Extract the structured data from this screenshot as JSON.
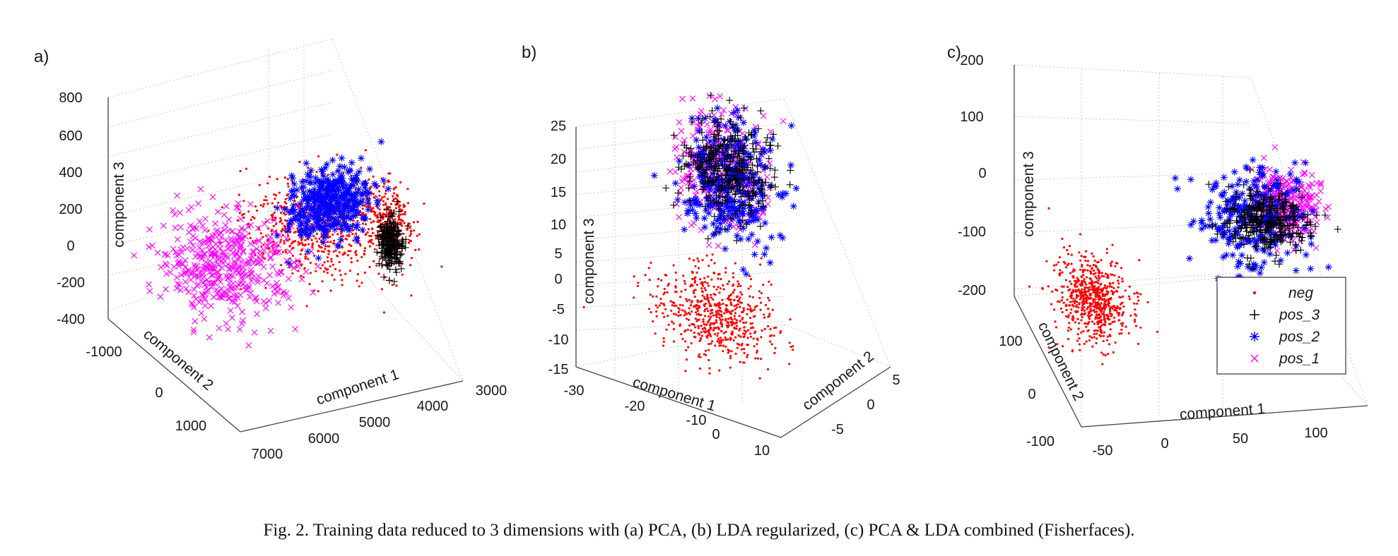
{
  "caption": "Fig. 2. Training data reduced to 3 dimensions with (a) PCA, (b) LDA regularized, (c) PCA & LDA combined (Fisherfaces).",
  "series_styles": {
    "neg": {
      "color": "#ff0000",
      "marker": "dot"
    },
    "pos_3": {
      "color": "#000000",
      "marker": "plus"
    },
    "pos_2": {
      "color": "#0000ff",
      "marker": "asterisk"
    },
    "pos_1": {
      "color": "#ff00ff",
      "marker": "x"
    }
  },
  "chart_data": [
    {
      "panel": "a)",
      "type": "scatter",
      "projection": "3d",
      "xlabel": "component 1",
      "ylabel": "component 2",
      "zlabel": "component 3",
      "xticks": [
        "3000",
        "4000",
        "5000",
        "6000",
        "7000"
      ],
      "yticks": [
        "-1000",
        "0",
        "1000"
      ],
      "zticks": [
        "800",
        "600",
        "400",
        "200",
        "0",
        "-200",
        "-400"
      ],
      "xlim": [
        3000,
        7000
      ],
      "ylim": [
        -1500,
        1500
      ],
      "zlim": [
        -400,
        800
      ],
      "grid": true,
      "series": [
        {
          "name": "neg",
          "clusters": [
            {
              "x": 4300,
              "y": 0,
              "z": 220,
              "sx": 650,
              "sy": 400,
              "sz": 110,
              "n": 700
            },
            {
              "x": 3300,
              "y": -200,
              "z": 220,
              "sx": 160,
              "sy": 200,
              "sz": 70,
              "n": 200
            }
          ]
        },
        {
          "name": "pos_3",
          "clusters": [
            {
              "x": 3350,
              "y": -300,
              "z": 120,
              "sx": 90,
              "sy": 80,
              "sz": 70,
              "n": 220
            }
          ]
        },
        {
          "name": "pos_2",
          "clusters": [
            {
              "x": 4600,
              "y": -500,
              "z": 470,
              "sx": 350,
              "sy": 120,
              "sz": 100,
              "n": 380
            }
          ]
        },
        {
          "name": "pos_1",
          "clusters": [
            {
              "x": 5600,
              "y": 600,
              "z": -20,
              "sx": 520,
              "sy": 380,
              "sz": 120,
              "n": 440
            }
          ]
        }
      ]
    },
    {
      "panel": "b)",
      "type": "scatter",
      "projection": "3d",
      "xlabel": "component 1",
      "ylabel": "component 2",
      "zlabel": "component 3",
      "xticks": [
        "-30",
        "-20",
        "-10",
        "0",
        "10"
      ],
      "yticks": [
        "-5",
        "0",
        "5"
      ],
      "zticks": [
        "25",
        "20",
        "15",
        "10",
        "5",
        "0",
        "-5",
        "-10",
        "-15"
      ],
      "xlim": [
        -30,
        10
      ],
      "ylim": [
        -7,
        7
      ],
      "zlim": [
        -15,
        25
      ],
      "grid": true,
      "series": [
        {
          "name": "neg",
          "clusters": [
            {
              "x": 2,
              "y": -1,
              "z": -2,
              "sx": 3.5,
              "sy": 1.8,
              "sz": 3.5,
              "n": 600
            }
          ]
        },
        {
          "name": "pos_3",
          "clusters": [
            {
              "x": -16,
              "y": 1.5,
              "z": 15,
              "sx": 3,
              "sy": 1.4,
              "sz": 4,
              "n": 320
            }
          ]
        },
        {
          "name": "pos_2",
          "clusters": [
            {
              "x": -15,
              "y": 1.2,
              "z": 13,
              "sx": 3.5,
              "sy": 1.5,
              "sz": 5,
              "n": 320
            }
          ]
        },
        {
          "name": "pos_1",
          "clusters": [
            {
              "x": -15,
              "y": 1.8,
              "z": 15,
              "sx": 3.5,
              "sy": 1.4,
              "sz": 4.5,
              "n": 300
            }
          ]
        }
      ]
    },
    {
      "panel": "c)",
      "type": "scatter",
      "projection": "3d",
      "xlabel": "component 1",
      "ylabel": "component 2",
      "zlabel": "component 3",
      "xticks": [
        "-50",
        "0",
        "50",
        "100"
      ],
      "yticks": [
        "-100",
        "0",
        "100"
      ],
      "zticks": [
        "200",
        "100",
        "0",
        "-100",
        "-200"
      ],
      "xlim": [
        -75,
        125
      ],
      "ylim": [
        -120,
        120
      ],
      "zlim": [
        -220,
        220
      ],
      "grid": true,
      "legend": {
        "position": "bottom-right",
        "entries": [
          "neg",
          "pos_3",
          "pos_2",
          "pos_1"
        ]
      },
      "series": [
        {
          "name": "neg",
          "clusters": [
            {
              "x": -40,
              "y": 20,
              "z": -130,
              "sx": 12,
              "sy": 25,
              "sz": 30,
              "n": 650
            }
          ]
        },
        {
          "name": "pos_3",
          "clusters": [
            {
              "x": 70,
              "y": -40,
              "z": 60,
              "sx": 14,
              "sy": 18,
              "sz": 25,
              "n": 300
            }
          ]
        },
        {
          "name": "pos_2",
          "clusters": [
            {
              "x": 60,
              "y": -35,
              "z": 60,
              "sx": 18,
              "sy": 20,
              "sz": 45,
              "n": 260
            }
          ]
        },
        {
          "name": "pos_1",
          "clusters": [
            {
              "x": 80,
              "y": -55,
              "z": 110,
              "sx": 12,
              "sy": 16,
              "sz": 30,
              "n": 280
            }
          ]
        }
      ]
    }
  ]
}
